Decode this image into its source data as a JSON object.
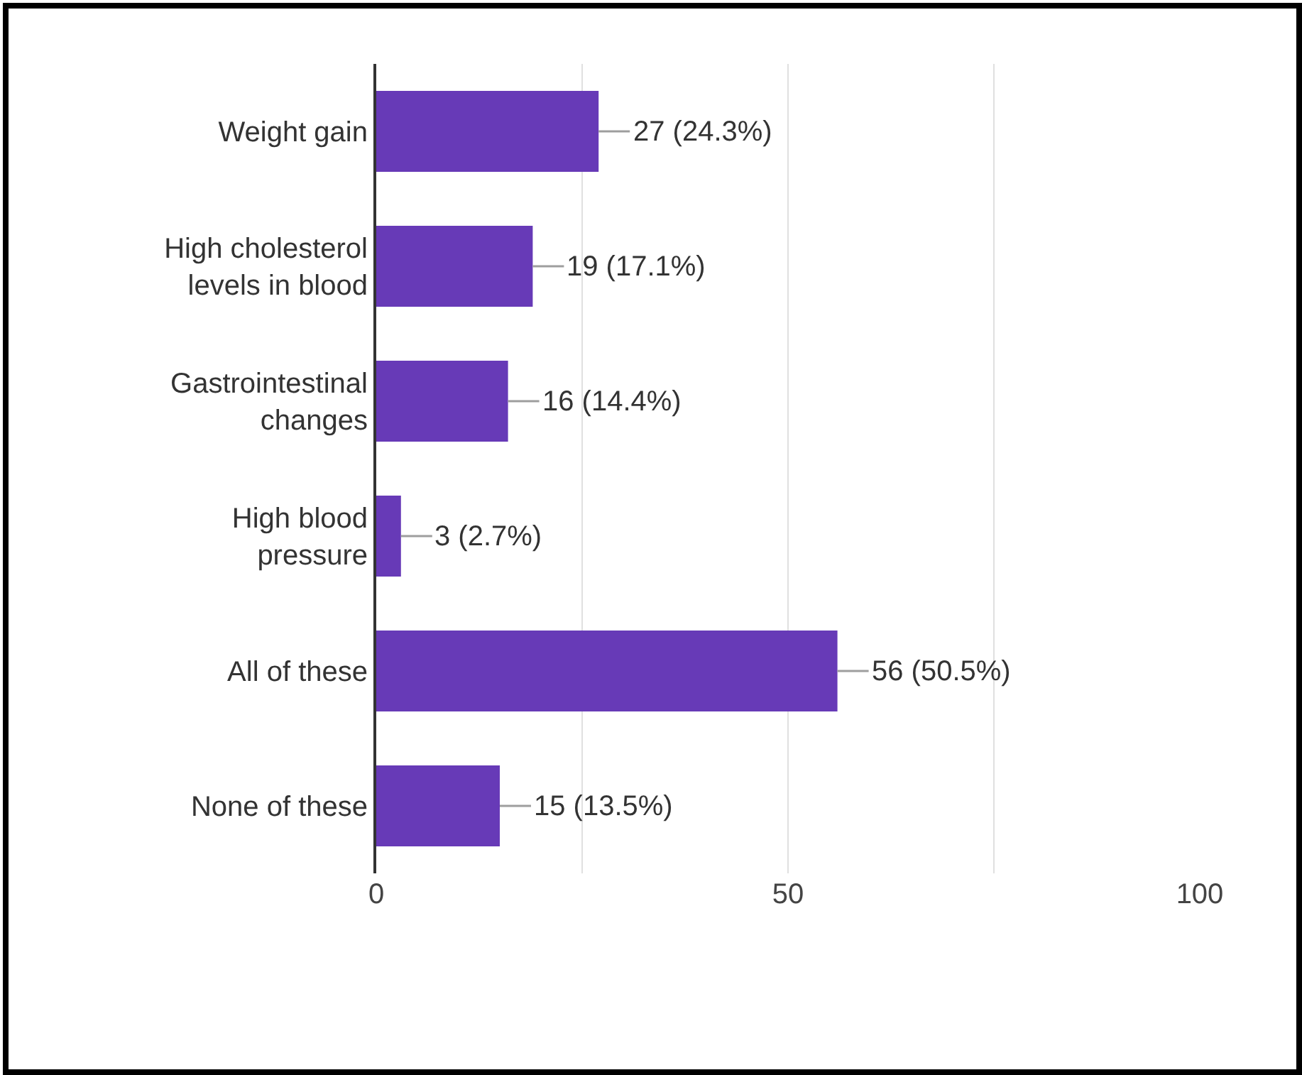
{
  "chart_data": {
    "type": "bar",
    "orientation": "horizontal",
    "categories": [
      "Weight gain",
      "High cholesterol levels in blood",
      "Gastrointestinal changes",
      "High blood pressure",
      "All of these",
      "None of these"
    ],
    "values": [
      27,
      19,
      16,
      3,
      56,
      15
    ],
    "value_labels": [
      "27 (24.3%)",
      "19 (17.1%)",
      "16 (14.4%)",
      "3 (2.7%)",
      "56 (50.5%)",
      "15 (13.5%)"
    ],
    "color": "#673ab7",
    "xlim": [
      0,
      100
    ],
    "xticks": [
      0,
      {
        "value": 25,
        "label": null
      },
      50,
      {
        "value": 75,
        "label": null
      },
      100
    ],
    "grid": "x"
  }
}
